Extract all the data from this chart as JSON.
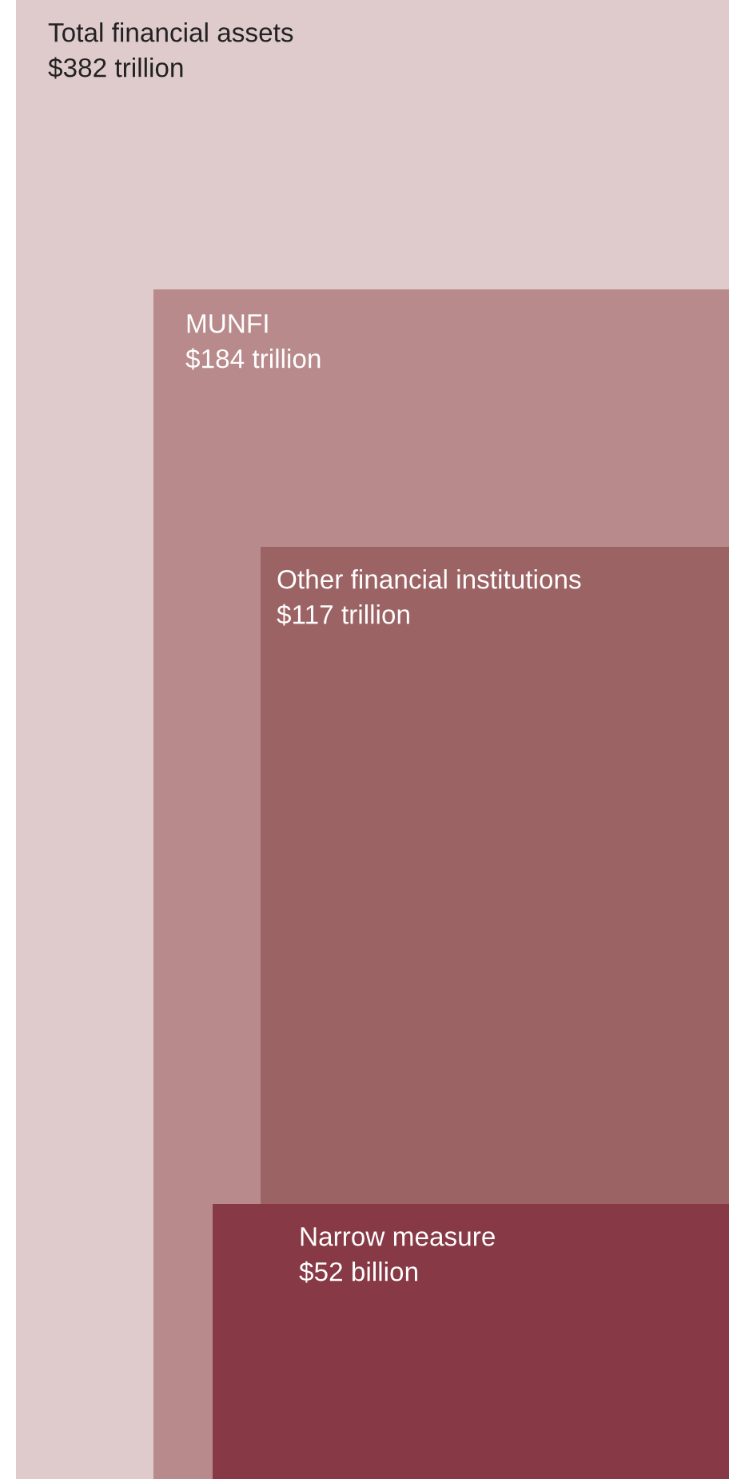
{
  "chart_data": {
    "type": "other",
    "categories": [
      "Total financial assets",
      "MUNFI",
      "Other financial institutions",
      "Narrow measure"
    ],
    "values": [
      382,
      184,
      117,
      52
    ],
    "value_labels": [
      "$382 trillion",
      "$184 trillion",
      "$117 trillion",
      "$52 billion"
    ],
    "colors": [
      "#dfcbcb",
      "#b88a8b",
      "#9c6365",
      "#873a46"
    ]
  }
}
